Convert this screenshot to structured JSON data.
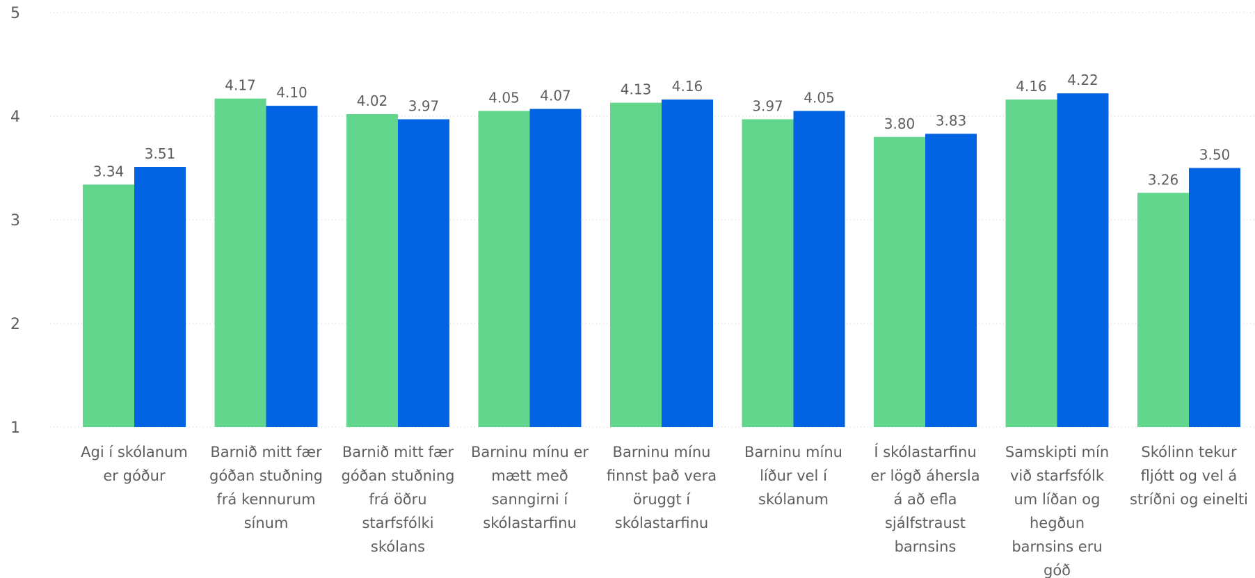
{
  "chart_data": {
    "type": "bar",
    "ylim": [
      1,
      5
    ],
    "yticks": [
      "1",
      "2",
      "3",
      "4",
      "5"
    ],
    "grid": true,
    "categories": [
      [
        "Agi í skólanum",
        "er góður"
      ],
      [
        "Barnið mitt fær",
        "góðan stuðning",
        "frá kennurum",
        "sínum"
      ],
      [
        "Barnið mitt fær",
        "góðan stuðning",
        "frá öðru",
        "starfsfólki",
        "skólans"
      ],
      [
        "Barninu mínu er",
        "mætt með",
        "sanngirni í",
        "skólastarfinu"
      ],
      [
        "Barninu mínu",
        "finnst það vera",
        "öruggt í",
        "skólastarfinu"
      ],
      [
        "Barninu mínu",
        "líður vel í",
        "skólanum"
      ],
      [
        "Í skólastarfinu",
        "er lögð áhersla",
        "á að efla",
        "sjálfstraust",
        "barnsins"
      ],
      [
        "Samskipti mín",
        "við starfsfólk",
        "um líðan og",
        "hegðun",
        "barnsins eru",
        "góð"
      ],
      [
        "Skólinn tekur",
        "fljótt og vel á",
        "stríðni og einelti"
      ]
    ],
    "series": [
      {
        "color": "#62d68c",
        "values": [
          3.34,
          4.17,
          4.02,
          4.05,
          4.13,
          3.97,
          3.8,
          4.16,
          3.26
        ],
        "labels": [
          "3.34",
          "4.17",
          "4.02",
          "4.05",
          "4.13",
          "3.97",
          "3.80",
          "4.16",
          "3.26"
        ]
      },
      {
        "color": "#0364e3",
        "values": [
          3.51,
          4.1,
          3.97,
          4.07,
          4.16,
          4.05,
          3.83,
          4.22,
          3.5
        ],
        "labels": [
          "3.51",
          "4.10",
          "3.97",
          "4.07",
          "4.16",
          "4.05",
          "3.83",
          "4.22",
          "3.50"
        ]
      }
    ]
  }
}
